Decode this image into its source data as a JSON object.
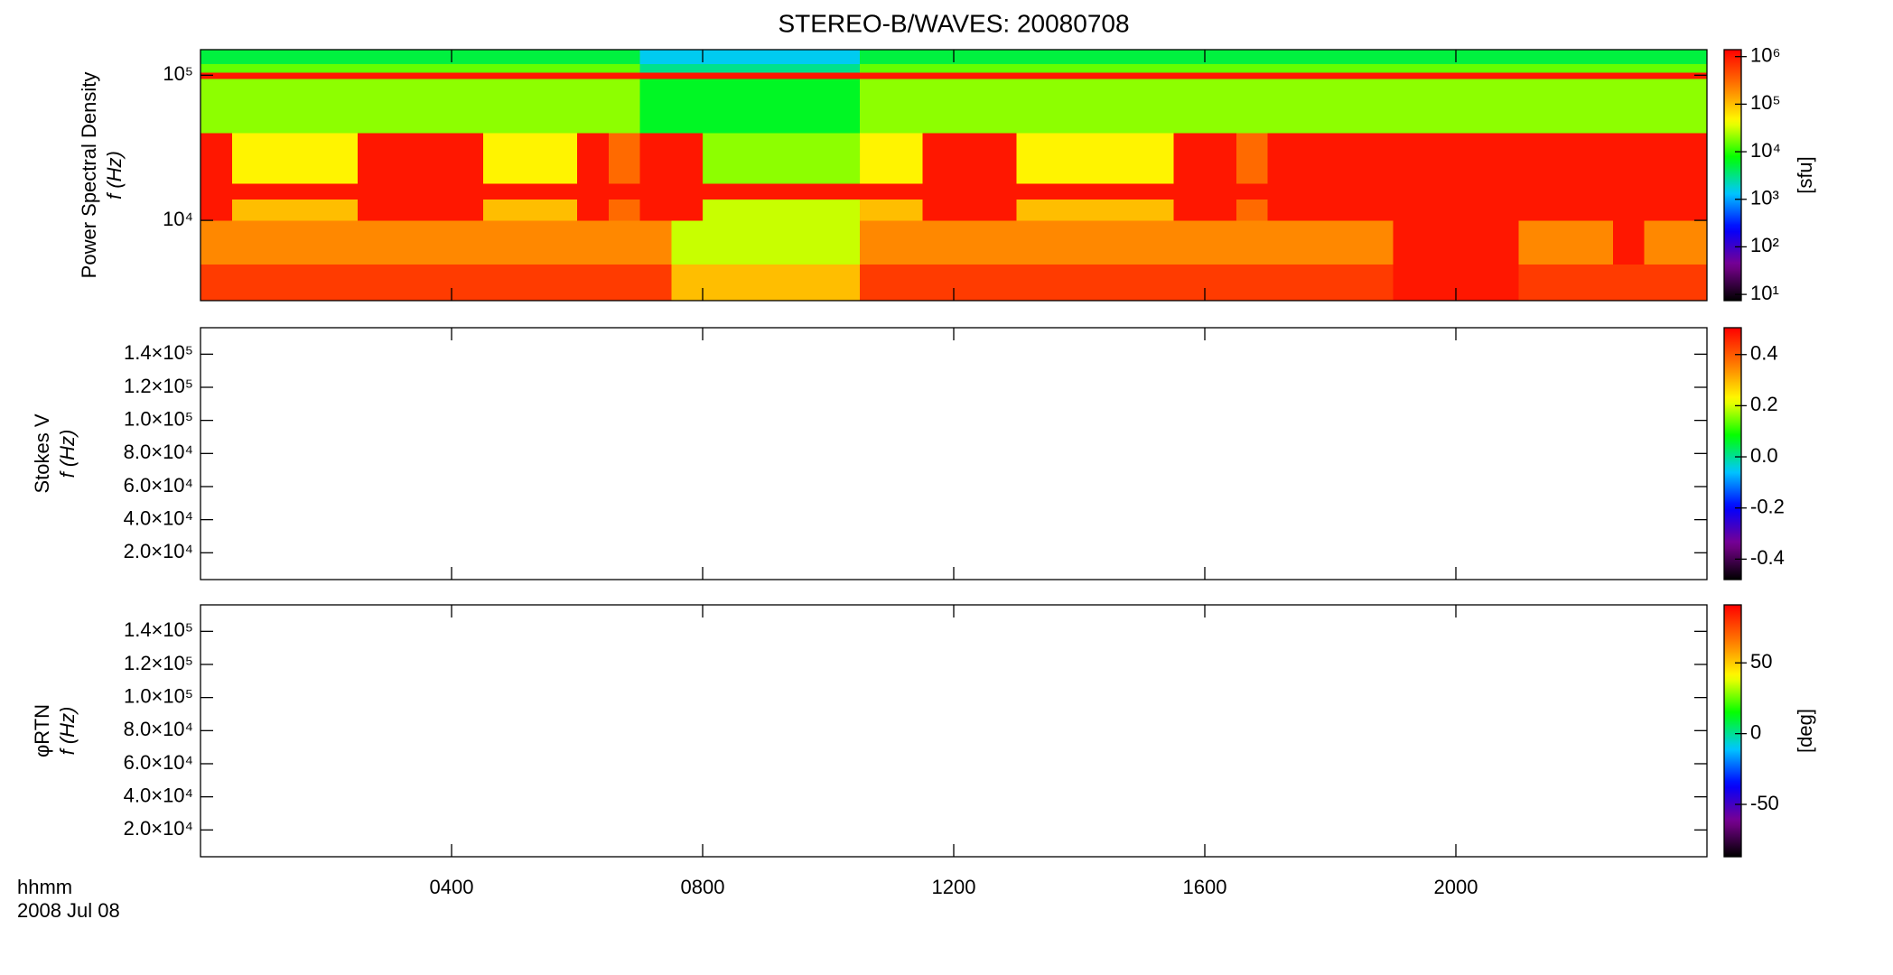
{
  "title": "STEREO-B/WAVES: 20080708",
  "x_label": "hhmm",
  "date": "2008 Jul 08",
  "chart_data": [
    {
      "type": "heatmap",
      "ylabel": [
        "Power Spectral Density",
        "f (Hz)"
      ],
      "xlim": [
        0,
        24
      ],
      "ylim": [
        2800,
        150000
      ],
      "ylog": true,
      "yticks": [
        {
          "value": 10000,
          "label": "10⁴"
        },
        {
          "value": 100000,
          "label": "10⁵"
        }
      ],
      "x_bins": [
        0,
        0.5,
        1,
        1.5,
        2,
        2.5,
        3,
        3.5,
        4,
        4.5,
        5,
        5.5,
        6,
        6.5,
        7,
        7.5,
        8,
        8.5,
        9,
        9.5,
        10,
        10.5,
        11,
        11.5,
        12,
        12.5,
        13,
        13.5,
        14,
        14.5,
        15,
        15.5,
        16,
        16.5,
        17,
        17.5,
        18,
        18.5,
        19,
        19.5,
        20,
        20.5,
        21,
        21.5,
        22,
        22.5,
        23,
        23.5,
        24
      ],
      "y_bins": [
        2800,
        5000,
        10000,
        14000,
        18000,
        40000,
        95000,
        105000,
        120000,
        150000
      ],
      "z": [
        [
          600000.0,
          600000.0,
          600000.0,
          600000.0,
          600000.0,
          600000.0,
          600000.0,
          600000.0,
          600000.0,
          600000.0,
          600000.0,
          600000.0,
          600000.0,
          600000.0,
          600000.0,
          100000.0,
          100000.0,
          100000.0,
          100000.0,
          100000.0,
          100000.0,
          600000.0,
          600000.0,
          600000.0,
          600000.0,
          600000.0,
          600000.0,
          600000.0,
          600000.0,
          600000.0,
          600000.0,
          600000.0,
          600000.0,
          600000.0,
          600000.0,
          600000.0,
          600000.0,
          600000.0,
          1000000.0,
          1000000.0,
          1000000.0,
          1000000.0,
          600000.0,
          600000.0,
          600000.0,
          600000.0,
          600000.0,
          600000.0
        ],
        [
          200000.0,
          200000.0,
          200000.0,
          200000.0,
          200000.0,
          200000.0,
          200000.0,
          200000.0,
          200000.0,
          200000.0,
          200000.0,
          200000.0,
          200000.0,
          200000.0,
          200000.0,
          30000.0,
          30000.0,
          30000.0,
          30000.0,
          30000.0,
          30000.0,
          200000.0,
          200000.0,
          200000.0,
          200000.0,
          200000.0,
          200000.0,
          200000.0,
          200000.0,
          200000.0,
          200000.0,
          200000.0,
          200000.0,
          200000.0,
          200000.0,
          200000.0,
          200000.0,
          200000.0,
          1000000.0,
          1000000.0,
          1000000.0,
          1000000.0,
          200000.0,
          200000.0,
          200000.0,
          1000000.0,
          200000.0,
          200000.0
        ],
        [
          1000000.0,
          100000.0,
          100000.0,
          100000.0,
          100000.0,
          1000000.0,
          1000000.0,
          1000000.0,
          1000000.0,
          100000.0,
          100000.0,
          100000.0,
          1000000.0,
          300000.0,
          1000000.0,
          1000000.0,
          30000.0,
          30000.0,
          30000.0,
          30000.0,
          30000.0,
          100000.0,
          100000.0,
          1000000.0,
          1000000.0,
          1000000.0,
          100000.0,
          100000.0,
          100000.0,
          100000.0,
          100000.0,
          1000000.0,
          1000000.0,
          300000.0,
          1000000.0,
          1000000.0,
          1000000.0,
          1000000.0,
          1000000.0,
          1000000.0,
          1000000.0,
          1000000.0,
          1000000.0,
          1000000.0,
          1000000.0,
          1000000.0,
          1000000.0,
          1000000.0
        ],
        [
          1000000.0,
          1000000.0,
          1000000.0,
          1000000.0,
          1000000.0,
          1000000.0,
          1000000.0,
          1000000.0,
          1000000.0,
          1000000.0,
          1000000.0,
          1000000.0,
          1000000.0,
          1000000.0,
          1000000.0,
          1000000.0,
          1000000.0,
          1000000.0,
          1000000.0,
          1000000.0,
          1000000.0,
          1000000.0,
          1000000.0,
          1000000.0,
          1000000.0,
          1000000.0,
          1000000.0,
          1000000.0,
          1000000.0,
          1000000.0,
          1000000.0,
          1000000.0,
          1000000.0,
          1000000.0,
          1000000.0,
          1000000.0,
          1000000.0,
          1000000.0,
          1000000.0,
          1000000.0,
          1000000.0,
          1000000.0,
          1000000.0,
          1000000.0,
          1000000.0,
          1000000.0,
          1000000.0,
          1000000.0
        ],
        [
          1000000.0,
          50000.0,
          50000.0,
          50000.0,
          50000.0,
          1000000.0,
          1000000.0,
          1000000.0,
          1000000.0,
          50000.0,
          50000.0,
          50000.0,
          1000000.0,
          300000.0,
          1000000.0,
          1000000.0,
          20000.0,
          20000.0,
          20000.0,
          20000.0,
          20000.0,
          50000.0,
          50000.0,
          1000000.0,
          1000000.0,
          1000000.0,
          50000.0,
          50000.0,
          50000.0,
          50000.0,
          50000.0,
          1000000.0,
          1000000.0,
          300000.0,
          1000000.0,
          1000000.0,
          1000000.0,
          1000000.0,
          1000000.0,
          1000000.0,
          1000000.0,
          1000000.0,
          1000000.0,
          1000000.0,
          1000000.0,
          1000000.0,
          1000000.0,
          1000000.0
        ],
        [
          20000.0,
          20000.0,
          20000.0,
          20000.0,
          20000.0,
          20000.0,
          20000.0,
          20000.0,
          20000.0,
          20000.0,
          20000.0,
          20000.0,
          20000.0,
          20000.0,
          6000.0,
          6000.0,
          6000.0,
          6000.0,
          6000.0,
          6000.0,
          6000.0,
          20000.0,
          20000.0,
          20000.0,
          20000.0,
          20000.0,
          20000.0,
          20000.0,
          20000.0,
          20000.0,
          20000.0,
          20000.0,
          20000.0,
          20000.0,
          20000.0,
          20000.0,
          20000.0,
          20000.0,
          20000.0,
          20000.0,
          20000.0,
          20000.0,
          20000.0,
          20000.0,
          20000.0,
          20000.0,
          20000.0,
          20000.0
        ],
        [
          1000000.0,
          1000000.0,
          1000000.0,
          1000000.0,
          1000000.0,
          1000000.0,
          1000000.0,
          1000000.0,
          1000000.0,
          1000000.0,
          1000000.0,
          1000000.0,
          1000000.0,
          1000000.0,
          1000000.0,
          1000000.0,
          1000000.0,
          1000000.0,
          1000000.0,
          1000000.0,
          1000000.0,
          1000000.0,
          1000000.0,
          1000000.0,
          1000000.0,
          1000000.0,
          1000000.0,
          1000000.0,
          1000000.0,
          1000000.0,
          1000000.0,
          1000000.0,
          1000000.0,
          1000000.0,
          1000000.0,
          1000000.0,
          1000000.0,
          1000000.0,
          1000000.0,
          1000000.0,
          1000000.0,
          1000000.0,
          1000000.0,
          1000000.0,
          1000000.0,
          1000000.0,
          1000000.0,
          1000000.0
        ],
        [
          15000.0,
          15000.0,
          15000.0,
          15000.0,
          15000.0,
          15000.0,
          15000.0,
          15000.0,
          15000.0,
          15000.0,
          15000.0,
          15000.0,
          15000.0,
          15000.0,
          3000.0,
          3000.0,
          3000.0,
          3000.0,
          3000.0,
          3000.0,
          3000.0,
          15000.0,
          15000.0,
          15000.0,
          15000.0,
          15000.0,
          15000.0,
          15000.0,
          15000.0,
          15000.0,
          15000.0,
          15000.0,
          15000.0,
          15000.0,
          15000.0,
          15000.0,
          15000.0,
          15000.0,
          15000.0,
          15000.0,
          15000.0,
          15000.0,
          15000.0,
          15000.0,
          15000.0,
          15000.0,
          15000.0,
          15000.0
        ],
        [
          5000.0,
          5000.0,
          5000.0,
          5000.0,
          5000.0,
          5000.0,
          5000.0,
          5000.0,
          5000.0,
          5000.0,
          5000.0,
          5000.0,
          5000.0,
          5000.0,
          1500.0,
          1500.0,
          1500.0,
          1500.0,
          1500.0,
          1500.0,
          1500.0,
          5000.0,
          5000.0,
          5000.0,
          5000.0,
          5000.0,
          5000.0,
          5000.0,
          5000.0,
          5000.0,
          5000.0,
          5000.0,
          5000.0,
          5000.0,
          5000.0,
          5000.0,
          5000.0,
          5000.0,
          5000.0,
          5000.0,
          5000.0,
          5000.0,
          5000.0,
          5000.0,
          5000.0,
          5000.0,
          5000.0,
          5000.0
        ]
      ],
      "colorbar": {
        "lim": [
          7.4,
          1400000
        ],
        "log": true,
        "label": "[sfu]",
        "colormap": [
          "#000000",
          "#7a0090",
          "#0000ff",
          "#00c8ff",
          "#00ff00",
          "#ffff00",
          "#ff7800",
          "#ff0000"
        ],
        "ticks": [
          {
            "value": 10,
            "label": "10¹"
          },
          {
            "value": 100,
            "label": "10²"
          },
          {
            "value": 1000,
            "label": "10³"
          },
          {
            "value": 10000,
            "label": "10⁴"
          },
          {
            "value": 100000,
            "label": "10⁵"
          },
          {
            "value": 1000000,
            "label": "10⁶"
          }
        ]
      }
    },
    {
      "type": "heatmap",
      "ylabel": [
        "Stokes V",
        "f (Hz)"
      ],
      "xlim": [
        0,
        24
      ],
      "ylim": [
        3800,
        156000
      ],
      "yticks": [
        {
          "value": 20000,
          "label": "2.0×10⁴"
        },
        {
          "value": 40000,
          "label": "4.0×10⁴"
        },
        {
          "value": 60000,
          "label": "6.0×10⁴"
        },
        {
          "value": 80000,
          "label": "8.0×10⁴"
        },
        {
          "value": 100000,
          "label": "1.0×10⁵"
        },
        {
          "value": 120000,
          "label": "1.2×10⁵"
        },
        {
          "value": 140000,
          "label": "1.4×10⁵"
        }
      ],
      "colorbar": {
        "lim": [
          -0.48,
          0.505
        ],
        "colormap": [
          "#000000",
          "#7a0090",
          "#0000ff",
          "#00c8ff",
          "#00ff00",
          "#ffff00",
          "#ff7800",
          "#ff0000"
        ],
        "ticks": [
          -0.4,
          -0.2,
          {
            "value": 0,
            "label": "0.0"
          },
          0.2,
          0.4
        ]
      }
    },
    {
      "type": "heatmap",
      "ylabel": [
        "φRTN",
        "f (Hz)"
      ],
      "xlim": [
        0,
        24
      ],
      "xticks": [
        {
          "value": 4,
          "label": "0400"
        },
        {
          "value": 8,
          "label": "0800"
        },
        {
          "value": 12,
          "label": "1200"
        },
        {
          "value": 16,
          "label": "1600"
        },
        {
          "value": 20,
          "label": "2000"
        }
      ],
      "ylim": [
        3800,
        156000
      ],
      "yticks": [
        {
          "value": 20000,
          "label": "2.0×10⁴"
        },
        {
          "value": 40000,
          "label": "4.0×10⁴"
        },
        {
          "value": 60000,
          "label": "6.0×10⁴"
        },
        {
          "value": 80000,
          "label": "8.0×10⁴"
        },
        {
          "value": 100000,
          "label": "1.0×10⁵"
        },
        {
          "value": 120000,
          "label": "1.2×10⁵"
        },
        {
          "value": 140000,
          "label": "1.4×10⁵"
        }
      ],
      "colorbar": {
        "lim": [
          -87,
          91
        ],
        "label": "[deg]",
        "colormap": [
          "#000000",
          "#7a0090",
          "#0000ff",
          "#00c8ff",
          "#00ff00",
          "#ffff00",
          "#ff7800",
          "#ff0000"
        ],
        "ticks": [
          -50,
          0,
          50
        ]
      }
    }
  ]
}
